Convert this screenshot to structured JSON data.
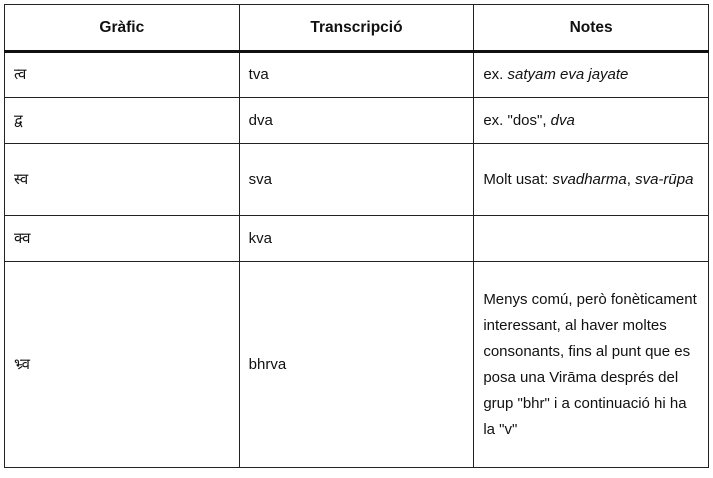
{
  "table": {
    "headers": [
      "Gràfic",
      "Transcripció",
      "Notes"
    ],
    "rows": [
      {
        "grafic": "त्व",
        "transcripcio": "tva",
        "notes": [
          {
            "t": "ex. ",
            "i": false
          },
          {
            "t": "satyam eva jayate",
            "i": true
          }
        ]
      },
      {
        "grafic": "द्व",
        "transcripcio": "dva",
        "notes": [
          {
            "t": "ex. \"dos\", ",
            "i": false
          },
          {
            "t": "dva",
            "i": true
          }
        ]
      },
      {
        "grafic": "स्व",
        "transcripcio": "sva",
        "notes": [
          {
            "t": "Molt usat: ",
            "i": false
          },
          {
            "t": "svadharma",
            "i": true
          },
          {
            "t": ", ",
            "i": false
          },
          {
            "t": "sva-rūpa",
            "i": true
          }
        ]
      },
      {
        "grafic": "क्व",
        "transcripcio": "kva",
        "notes": []
      },
      {
        "grafic": "भ्र्व",
        "transcripcio": "bhrva",
        "notes": [
          {
            "t": "Menys comú, però fonèticament interessant, al haver moltes consonants, fins al punt que es posa una Virāma després del grup \"bhr\" i a continuació hi ha la \"v\"",
            "i": false
          }
        ]
      }
    ]
  }
}
